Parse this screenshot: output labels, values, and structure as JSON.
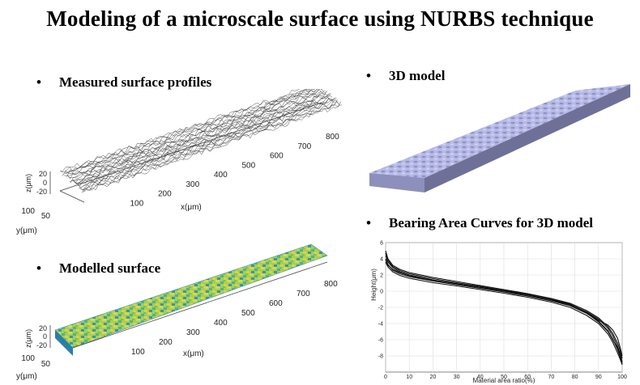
{
  "title": "Modeling of a microscale surface using NURBS technique",
  "bullets": {
    "measured": "Measured surface profiles",
    "modelled": "Modelled surface",
    "model3d": "3D model",
    "bearing": "Bearing Area Curves for 3D model"
  },
  "plot3d_top": {
    "x_ticks": [
      "100",
      "200",
      "300",
      "400",
      "500",
      "600",
      "700",
      "800"
    ],
    "xlabel": "x(μm)",
    "y_ticks": [
      "50",
      "100"
    ],
    "ylabel": "y(μm)",
    "z_ticks": [
      "20",
      "0",
      "-20"
    ],
    "zlabel": "z(μm)"
  },
  "plot3d_bottom": {
    "x_ticks": [
      "100",
      "200",
      "300",
      "400",
      "500",
      "600",
      "700",
      "800"
    ],
    "xlabel": "x(μm)",
    "y_ticks": [
      "50",
      "100"
    ],
    "ylabel": "y(μm)",
    "z_ticks": [
      "20",
      "0",
      "-20"
    ],
    "zlabel": "z(μm)"
  },
  "colors": {
    "surface_high": "#e8d84a",
    "surface_mid": "#5fb87a",
    "surface_low": "#2c8fb8",
    "model_top": "#b4b6e4",
    "model_side": "#7c7ea8"
  },
  "chart_data": {
    "type": "line",
    "xlabel": "Material area ratio(%)",
    "ylabel": "Height(μm)",
    "xlim": [
      0,
      100
    ],
    "ylim": [
      -10,
      6
    ],
    "x_ticks": [
      0,
      10,
      20,
      30,
      40,
      50,
      60,
      70,
      80,
      90,
      100
    ],
    "y_ticks": [
      -8,
      -6,
      -4,
      -2,
      0,
      2,
      4,
      6
    ],
    "grid": true,
    "x": [
      0,
      1,
      3,
      6,
      10,
      20,
      30,
      40,
      50,
      60,
      70,
      78,
      85,
      90,
      94,
      96,
      98,
      99,
      100
    ],
    "series": [
      {
        "values": [
          5.0,
          4.0,
          3.2,
          2.7,
          2.3,
          1.7,
          1.2,
          0.7,
          0.2,
          -0.3,
          -0.9,
          -1.5,
          -2.4,
          -3.3,
          -4.4,
          -5.2,
          -6.4,
          -7.2,
          -8.3
        ]
      },
      {
        "values": [
          4.4,
          3.6,
          2.9,
          2.4,
          2.0,
          1.4,
          0.95,
          0.5,
          0.05,
          -0.45,
          -1.05,
          -1.65,
          -2.55,
          -3.45,
          -4.6,
          -5.5,
          -6.8,
          -7.6,
          -8.7
        ]
      },
      {
        "values": [
          4.0,
          3.3,
          2.6,
          2.15,
          1.8,
          1.25,
          0.8,
          0.35,
          -0.1,
          -0.6,
          -1.2,
          -1.8,
          -2.75,
          -3.7,
          -4.9,
          -5.9,
          -7.2,
          -8.0,
          -9.0
        ]
      },
      {
        "values": [
          3.6,
          3.0,
          2.4,
          1.95,
          1.6,
          1.05,
          0.65,
          0.2,
          -0.25,
          -0.75,
          -1.35,
          -2.0,
          -3.0,
          -4.0,
          -5.3,
          -6.3,
          -7.6,
          -8.3,
          -9.1
        ]
      },
      {
        "values": [
          4.7,
          3.8,
          3.05,
          2.55,
          2.15,
          1.55,
          1.05,
          0.6,
          0.1,
          -0.35,
          -0.95,
          -1.6,
          -2.6,
          -3.6,
          -4.2,
          -4.8,
          -5.8,
          -6.8,
          -8.0
        ]
      },
      {
        "values": [
          3.9,
          3.2,
          2.7,
          2.3,
          1.9,
          1.35,
          0.9,
          0.45,
          0.0,
          -0.5,
          -1.1,
          -1.75,
          -2.7,
          -3.8,
          -5.0,
          -6.0,
          -7.0,
          -7.8,
          -8.8
        ]
      }
    ]
  }
}
